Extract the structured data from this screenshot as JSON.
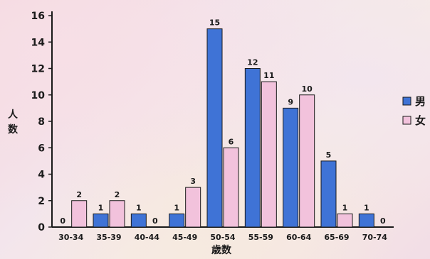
{
  "chart_data": {
    "type": "bar",
    "title": "",
    "xlabel": "歳数",
    "ylabel": "人数",
    "ylim": [
      0,
      16
    ],
    "yticks": [
      0,
      2,
      4,
      6,
      8,
      10,
      12,
      14,
      16
    ],
    "categories": [
      "30-34",
      "35-39",
      "40-44",
      "45-49",
      "50-54",
      "55-59",
      "60-64",
      "65-69",
      "70-74"
    ],
    "series": [
      {
        "name": "男",
        "color": "#3f73d6",
        "values": [
          0,
          1,
          1,
          1,
          15,
          12,
          9,
          5,
          1
        ]
      },
      {
        "name": "女",
        "color": "#f2c2dc",
        "values": [
          2,
          2,
          0,
          3,
          6,
          11,
          10,
          1,
          0
        ]
      }
    ],
    "legend": "right",
    "grid": false
  }
}
